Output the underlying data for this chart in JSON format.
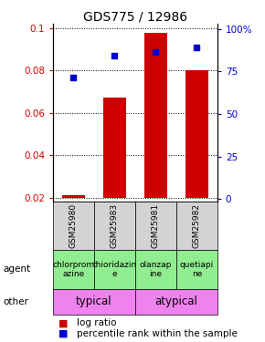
{
  "title": "GDS775 / 12986",
  "samples": [
    "GSM25980",
    "GSM25983",
    "GSM25981",
    "GSM25982"
  ],
  "log_ratio": [
    0.021,
    0.067,
    0.098,
    0.08
  ],
  "percentile_rank": [
    70,
    82,
    84,
    87
  ],
  "ylim_left": [
    0.018,
    0.102
  ],
  "ylim_right": [
    -1.5,
    103
  ],
  "yticks_left": [
    0.02,
    0.04,
    0.06,
    0.08,
    0.1
  ],
  "ytick_labels_left": [
    "0.02",
    "0.04",
    "0.06",
    "0.08",
    "0.1"
  ],
  "yticks_right": [
    0,
    25,
    50,
    75,
    100
  ],
  "ytick_labels_right": [
    "0",
    "25",
    "50",
    "75",
    "100%"
  ],
  "bar_color": "#cc0000",
  "dot_color": "#0000cc",
  "agent_labels": [
    "chlorprom\nazine",
    "thioridazin\ne",
    "olanzap\nine",
    "quetiapi\nne"
  ],
  "agent_color": "#90ee90",
  "typical_label": "typical",
  "atypical_label": "atypical",
  "other_color": "#ee82ee",
  "sample_bg_color": "#d3d3d3",
  "title_fontsize": 10,
  "tick_fontsize": 7.5,
  "agent_fontsize": 6.5,
  "other_fontsize": 8.5,
  "legend_fontsize": 7.5,
  "sample_fontsize": 6.5
}
